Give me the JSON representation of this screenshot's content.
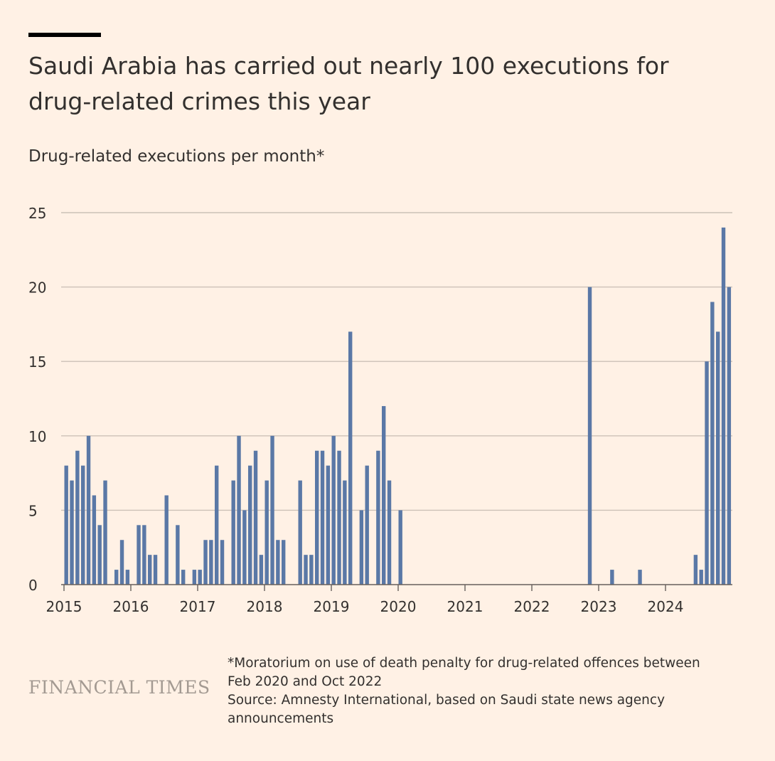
{
  "header": {
    "title": "Saudi Arabia has carried out nearly 100 executions for drug-related crimes this year",
    "subtitle": "Drug-related executions per month*"
  },
  "footer": {
    "logo": "FINANCIAL TIMES",
    "note": "*Moratorium on use of death penalty for drug-related offences between Feb 2020 and Oct 2022",
    "source": "Source: Amnesty International, based on Saudi state news agency announcements"
  },
  "colors": {
    "background": "#fff1e5",
    "bar": "#5a78a6",
    "grid": "#ccc1b7",
    "axis": "#66605c",
    "text": "#33302e"
  },
  "chart_data": {
    "type": "bar",
    "title": "Saudi Arabia has carried out nearly 100 executions for drug-related crimes this year",
    "ylabel": "Drug-related executions per month*",
    "xlabel": "",
    "ylim": [
      0,
      25
    ],
    "yticks": [
      0,
      5,
      10,
      15,
      20,
      25
    ],
    "xlim": [
      "2015-01",
      "2025-01"
    ],
    "xtick_labels": [
      "2015",
      "2016",
      "2017",
      "2018",
      "2019",
      "2020",
      "2021",
      "2022",
      "2023",
      "2024"
    ],
    "grid": true,
    "x": [
      "2015-01",
      "2015-02",
      "2015-03",
      "2015-04",
      "2015-05",
      "2015-06",
      "2015-07",
      "2015-08",
      "2015-09",
      "2015-10",
      "2015-11",
      "2015-12",
      "2016-01",
      "2016-02",
      "2016-03",
      "2016-04",
      "2016-05",
      "2016-06",
      "2016-07",
      "2016-08",
      "2016-09",
      "2016-10",
      "2016-11",
      "2016-12",
      "2017-01",
      "2017-02",
      "2017-03",
      "2017-04",
      "2017-05",
      "2017-06",
      "2017-07",
      "2017-08",
      "2017-09",
      "2017-10",
      "2017-11",
      "2017-12",
      "2018-01",
      "2018-02",
      "2018-03",
      "2018-04",
      "2018-05",
      "2018-06",
      "2018-07",
      "2018-08",
      "2018-09",
      "2018-10",
      "2018-11",
      "2018-12",
      "2019-01",
      "2019-02",
      "2019-03",
      "2019-04",
      "2019-05",
      "2019-06",
      "2019-07",
      "2019-08",
      "2019-09",
      "2019-10",
      "2019-11",
      "2019-12",
      "2020-01",
      "2022-11",
      "2023-03",
      "2023-08",
      "2024-06",
      "2024-07",
      "2024-08",
      "2024-09",
      "2024-10",
      "2024-11",
      "2024-12"
    ],
    "values": [
      8,
      7,
      9,
      8,
      10,
      6,
      4,
      7,
      0,
      1,
      3,
      1,
      0,
      4,
      4,
      2,
      2,
      0,
      6,
      0,
      4,
      1,
      0,
      1,
      1,
      3,
      3,
      8,
      3,
      0,
      7,
      10,
      5,
      8,
      9,
      2,
      7,
      10,
      3,
      3,
      0,
      0,
      7,
      2,
      2,
      9,
      9,
      8,
      10,
      9,
      7,
      17,
      0,
      5,
      8,
      0,
      9,
      12,
      7,
      0,
      5,
      20,
      1,
      1,
      2,
      1,
      15,
      19,
      17,
      24,
      20
    ]
  }
}
